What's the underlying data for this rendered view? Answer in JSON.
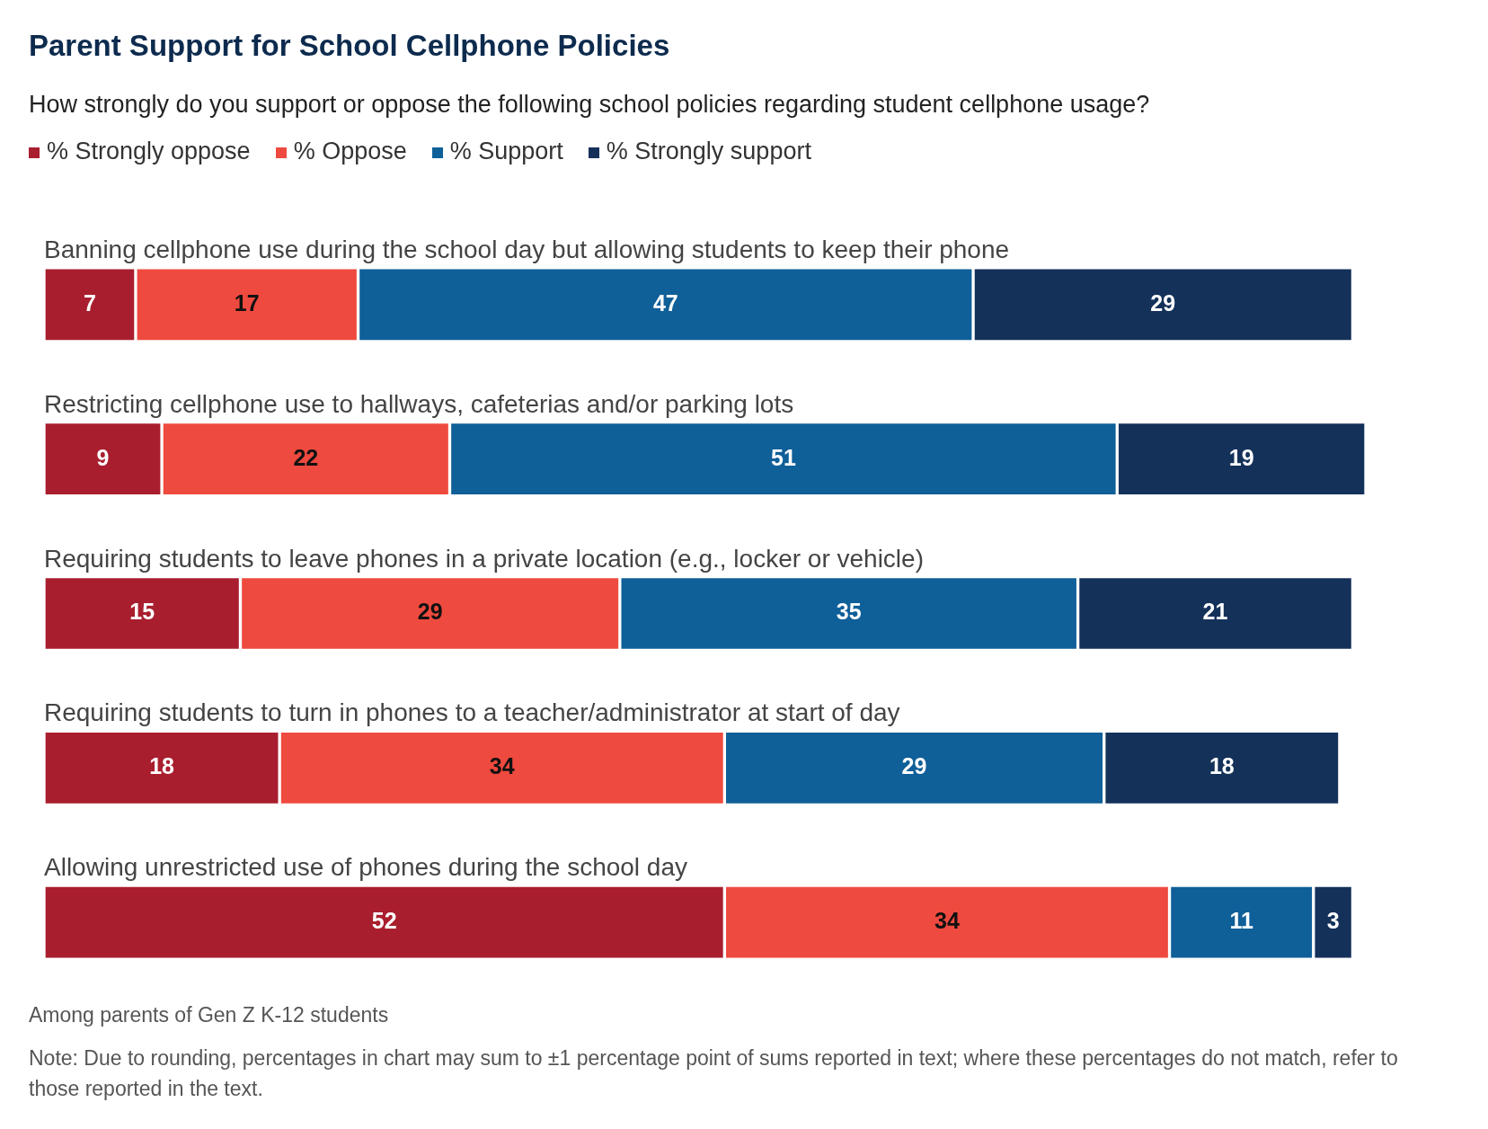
{
  "chart_data": {
    "type": "bar",
    "title": "Parent Support for School Cellphone Policies",
    "subtitle": "How strongly do you support or oppose the following school policies regarding student cellphone usage?",
    "categories": [
      "Banning cellphone use during the school day but allowing students to keep their phone",
      "Restricting cellphone use to hallways, cafeterias and/or parking lots",
      "Requiring students to leave phones in a private location (e.g., locker or vehicle)",
      "Requiring students to turn in phones to a teacher/administrator at start of day",
      "Allowing unrestricted use of phones during the school day"
    ],
    "series": [
      {
        "name": "% Strongly oppose",
        "color": "#a91e2e",
        "values": [
          7,
          9,
          15,
          18,
          52
        ]
      },
      {
        "name": "% Oppose",
        "color": "#ef4a3f",
        "values": [
          17,
          22,
          29,
          34,
          34
        ]
      },
      {
        "name": "% Support",
        "color": "#0f5f99",
        "values": [
          47,
          51,
          35,
          29,
          11
        ]
      },
      {
        "name": "% Strongly support",
        "color": "#14315a",
        "values": [
          29,
          19,
          21,
          18,
          3
        ]
      }
    ],
    "stacked": true,
    "orientation": "horizontal",
    "data_labels": true,
    "legend": "top left",
    "tick_labels": false,
    "grid": false,
    "annotations": [
      "Among parents of Gen Z K-12 students",
      "Note: Due to rounding, percentages in chart may sum to ±1 percentage point of sums reported in text; where these percentages do not match, refer to those reported in the text."
    ]
  }
}
